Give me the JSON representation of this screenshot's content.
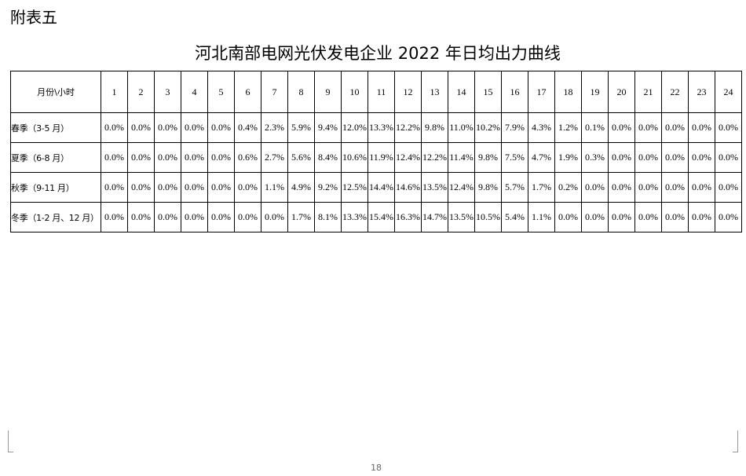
{
  "appendix_label": "附表五",
  "title": "河北南部电网光伏发电企业 2022 年日均出力曲线",
  "table": {
    "corner_header": "月份\\小时",
    "hours": [
      "1",
      "2",
      "3",
      "4",
      "5",
      "6",
      "7",
      "8",
      "9",
      "10",
      "11",
      "12",
      "13",
      "14",
      "15",
      "16",
      "17",
      "18",
      "19",
      "20",
      "21",
      "22",
      "23",
      "24"
    ],
    "rows": [
      {
        "season": "春季（3-5 月）",
        "values": [
          "0.0%",
          "0.0%",
          "0.0%",
          "0.0%",
          "0.0%",
          "0.4%",
          "2.3%",
          "5.9%",
          "9.4%",
          "12.0%",
          "13.3%",
          "12.2%",
          "9.8%",
          "11.0%",
          "10.2%",
          "7.9%",
          "4.3%",
          "1.2%",
          "0.1%",
          "0.0%",
          "0.0%",
          "0.0%",
          "0.0%",
          "0.0%"
        ]
      },
      {
        "season": "夏季（6-8 月）",
        "values": [
          "0.0%",
          "0.0%",
          "0.0%",
          "0.0%",
          "0.0%",
          "0.6%",
          "2.7%",
          "5.6%",
          "8.4%",
          "10.6%",
          "11.9%",
          "12.4%",
          "12.2%",
          "11.4%",
          "9.8%",
          "7.5%",
          "4.7%",
          "1.9%",
          "0.3%",
          "0.0%",
          "0.0%",
          "0.0%",
          "0.0%",
          "0.0%"
        ]
      },
      {
        "season": "秋季（9-11 月）",
        "values": [
          "0.0%",
          "0.0%",
          "0.0%",
          "0.0%",
          "0.0%",
          "0.0%",
          "1.1%",
          "4.9%",
          "9.2%",
          "12.5%",
          "14.4%",
          "14.6%",
          "13.5%",
          "12.4%",
          "9.8%",
          "5.7%",
          "1.7%",
          "0.2%",
          "0.0%",
          "0.0%",
          "0.0%",
          "0.0%",
          "0.0%",
          "0.0%"
        ]
      },
      {
        "season": "冬季（1-2 月、12 月）",
        "values": [
          "0.0%",
          "0.0%",
          "0.0%",
          "0.0%",
          "0.0%",
          "0.0%",
          "0.0%",
          "1.7%",
          "8.1%",
          "13.3%",
          "15.4%",
          "16.3%",
          "14.7%",
          "13.5%",
          "10.5%",
          "5.4%",
          "1.1%",
          "0.0%",
          "0.0%",
          "0.0%",
          "0.0%",
          "0.0%",
          "0.0%",
          "0.0%"
        ]
      }
    ]
  },
  "page_number": "18"
}
